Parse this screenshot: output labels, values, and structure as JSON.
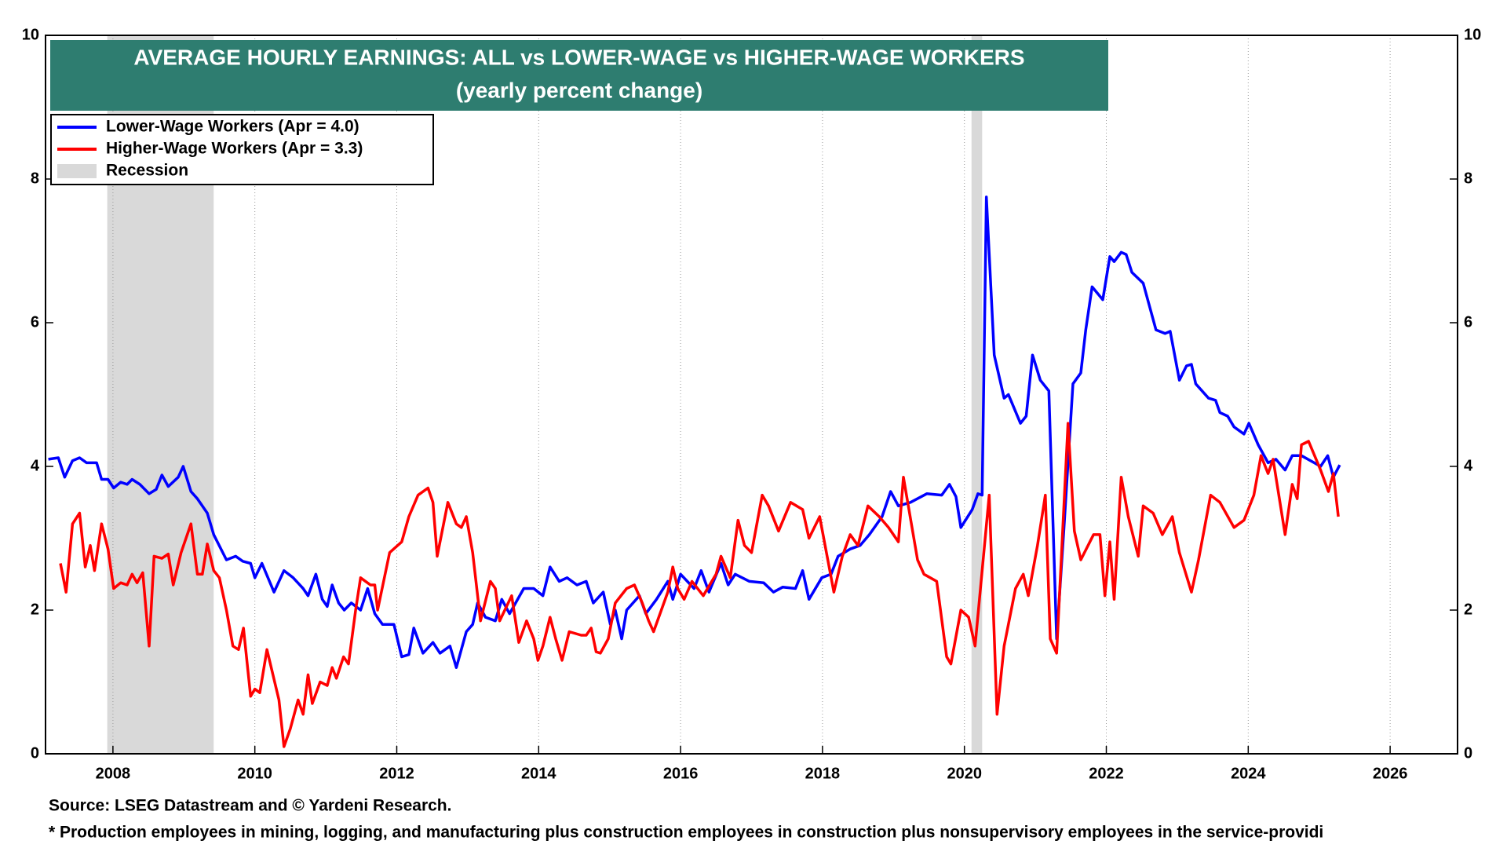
{
  "chart_data": {
    "type": "line",
    "title": "AVERAGE HOURLY EARNINGS: ALL vs LOWER-WAGE vs HIGHER-WAGE WORKERS",
    "subtitle": "(yearly percent change)",
    "source": "Source: LSEG Datastream and © Yardeni Research.",
    "footnote": "* Production employees in mining, logging, and manufacturing plus construction employees in construction plus nonsupervisory employees in the service-providi",
    "xlim": [
      2007.05,
      2026.95
    ],
    "xticks": [
      2008,
      2010,
      2012,
      2014,
      2016,
      2018,
      2020,
      2022,
      2024,
      2026
    ],
    "ylim": [
      0,
      10
    ],
    "yticks": [
      0,
      2,
      4,
      6,
      8,
      10
    ],
    "y2lim": [
      0,
      10
    ],
    "y2ticks": [
      0,
      2,
      4,
      6,
      8,
      10
    ],
    "grid": true,
    "legend": "top-left",
    "recession_label": "Recession",
    "recession_color": "#d9d9d9",
    "recessions": [
      [
        2007.92,
        2009.42
      ],
      [
        2020.1,
        2020.25
      ]
    ],
    "series": [
      {
        "name": "Lower-Wage Workers (Apr = 4.0)",
        "color": "#0000ff",
        "x": [
          2007.09,
          2007.23,
          2007.32,
          2007.43,
          2007.53,
          2007.63,
          2007.77,
          2007.84,
          2007.93,
          2008.01,
          2008.11,
          2008.2,
          2008.27,
          2008.38,
          2008.51,
          2008.61,
          2008.69,
          2008.78,
          2008.92,
          2008.99,
          2009.1,
          2009.19,
          2009.33,
          2009.42,
          2009.6,
          2009.73,
          2009.83,
          2009.94,
          2010.0,
          2010.1,
          2010.27,
          2010.41,
          2010.54,
          2010.68,
          2010.75,
          2010.86,
          2010.95,
          2011.02,
          2011.09,
          2011.18,
          2011.26,
          2011.36,
          2011.49,
          2011.59,
          2011.69,
          2011.8,
          2011.96,
          2012.07,
          2012.17,
          2012.24,
          2012.37,
          2012.51,
          2012.61,
          2012.75,
          2012.84,
          2012.98,
          2013.07,
          2013.14,
          2013.25,
          2013.39,
          2013.48,
          2013.59,
          2013.79,
          2013.93,
          2014.06,
          2014.16,
          2014.29,
          2014.4,
          2014.54,
          2014.67,
          2014.77,
          2014.91,
          2015.01,
          2015.08,
          2015.17,
          2015.24,
          2015.42,
          2015.51,
          2015.66,
          2015.82,
          2015.89,
          2016.0,
          2016.19,
          2016.29,
          2016.4,
          2016.57,
          2016.67,
          2016.77,
          2016.97,
          2017.17,
          2017.31,
          2017.44,
          2017.62,
          2017.72,
          2017.81,
          2017.99,
          2018.12,
          2018.22,
          2018.39,
          2018.53,
          2018.66,
          2018.84,
          2018.96,
          2019.07,
          2019.24,
          2019.47,
          2019.68,
          2019.79,
          2019.88,
          2019.95,
          2020.11,
          2020.19,
          2020.25,
          2020.31,
          2020.42,
          2020.56,
          2020.62,
          2020.79,
          2020.87,
          2020.96,
          2021.07,
          2021.19,
          2021.3,
          2021.4,
          2021.53,
          2021.64,
          2021.71,
          2021.8,
          2021.95,
          2022.05,
          2022.11,
          2022.21,
          2022.28,
          2022.36,
          2022.52,
          2022.7,
          2022.83,
          2022.9,
          2023.03,
          2023.13,
          2023.2,
          2023.26,
          2023.44,
          2023.54,
          2023.6,
          2023.71,
          2023.8,
          2023.94,
          2024.01,
          2024.14,
          2024.28,
          2024.39,
          2024.52,
          2024.62,
          2024.75,
          2024.93,
          2025.02,
          2025.12,
          2025.2,
          2025.29
        ],
        "values": [
          4.1,
          4.12,
          3.85,
          4.08,
          4.12,
          4.05,
          4.05,
          3.82,
          3.82,
          3.7,
          3.78,
          3.75,
          3.82,
          3.75,
          3.62,
          3.68,
          3.88,
          3.72,
          3.85,
          4.0,
          3.65,
          3.55,
          3.35,
          3.05,
          2.7,
          2.75,
          2.68,
          2.65,
          2.45,
          2.65,
          2.25,
          2.55,
          2.45,
          2.3,
          2.2,
          2.5,
          2.15,
          2.05,
          2.35,
          2.1,
          2.0,
          2.1,
          2.0,
          2.3,
          1.95,
          1.8,
          1.8,
          1.35,
          1.38,
          1.75,
          1.4,
          1.55,
          1.4,
          1.5,
          1.2,
          1.7,
          1.8,
          2.1,
          1.9,
          1.85,
          2.15,
          1.95,
          2.3,
          2.3,
          2.2,
          2.6,
          2.4,
          2.45,
          2.35,
          2.4,
          2.1,
          2.25,
          1.8,
          2.0,
          1.6,
          2.0,
          2.2,
          1.95,
          2.15,
          2.4,
          2.15,
          2.5,
          2.3,
          2.55,
          2.25,
          2.65,
          2.35,
          2.5,
          2.4,
          2.38,
          2.25,
          2.32,
          2.3,
          2.55,
          2.15,
          2.45,
          2.5,
          2.75,
          2.85,
          2.9,
          3.05,
          3.3,
          3.65,
          3.45,
          3.5,
          3.62,
          3.6,
          3.75,
          3.58,
          3.15,
          3.4,
          3.62,
          3.6,
          7.75,
          5.55,
          4.95,
          5.0,
          4.6,
          4.7,
          5.55,
          5.2,
          5.05,
          1.6,
          3.1,
          5.15,
          5.3,
          5.9,
          6.5,
          6.32,
          6.92,
          6.85,
          6.98,
          6.95,
          6.7,
          6.55,
          5.9,
          5.85,
          5.88,
          5.2,
          5.4,
          5.42,
          5.15,
          4.95,
          4.92,
          4.75,
          4.7,
          4.55,
          4.45,
          4.6,
          4.3,
          4.05,
          4.1,
          3.95,
          4.15,
          4.15,
          4.05,
          4.0,
          4.15,
          3.85,
          4.02
        ]
      },
      {
        "name": "Higher-Wage Workers (Apr = 3.3)",
        "color": "#ff0000",
        "x": [
          2007.26,
          2007.34,
          2007.43,
          2007.53,
          2007.61,
          2007.68,
          2007.74,
          2007.84,
          2007.93,
          2008.01,
          2008.11,
          2008.2,
          2008.27,
          2008.34,
          2008.42,
          2008.51,
          2008.58,
          2008.69,
          2008.78,
          2008.85,
          2008.96,
          2009.1,
          2009.19,
          2009.26,
          2009.33,
          2009.42,
          2009.5,
          2009.6,
          2009.69,
          2009.77,
          2009.84,
          2009.94,
          2010.0,
          2010.07,
          2010.17,
          2010.34,
          2010.41,
          2010.5,
          2010.61,
          2010.68,
          2010.75,
          2010.81,
          2010.92,
          2011.02,
          2011.09,
          2011.15,
          2011.25,
          2011.32,
          2011.42,
          2011.49,
          2011.63,
          2011.69,
          2011.73,
          2011.9,
          2012.07,
          2012.17,
          2012.3,
          2012.44,
          2012.51,
          2012.57,
          2012.72,
          2012.84,
          2012.91,
          2012.98,
          2013.07,
          2013.18,
          2013.32,
          2013.39,
          2013.45,
          2013.62,
          2013.72,
          2013.83,
          2013.93,
          2013.99,
          2014.06,
          2014.16,
          2014.24,
          2014.33,
          2014.43,
          2014.6,
          2014.67,
          2014.74,
          2014.81,
          2014.87,
          2014.98,
          2015.08,
          2015.24,
          2015.35,
          2015.46,
          2015.55,
          2015.62,
          2015.82,
          2015.89,
          2015.96,
          2016.05,
          2016.16,
          2016.32,
          2016.5,
          2016.57,
          2016.7,
          2016.81,
          2016.9,
          2017.0,
          2017.15,
          2017.24,
          2017.38,
          2017.55,
          2017.72,
          2017.81,
          2017.96,
          2018.16,
          2018.28,
          2018.39,
          2018.5,
          2018.64,
          2018.8,
          2018.93,
          2019.07,
          2019.14,
          2019.34,
          2019.43,
          2019.61,
          2019.75,
          2019.81,
          2019.95,
          2020.06,
          2020.15,
          2020.35,
          2020.46,
          2020.56,
          2020.72,
          2020.83,
          2020.9,
          2021.03,
          2021.14,
          2021.21,
          2021.3,
          2021.46,
          2021.55,
          2021.64,
          2021.82,
          2021.91,
          2021.98,
          2022.05,
          2022.11,
          2022.21,
          2022.31,
          2022.45,
          2022.52,
          2022.66,
          2022.79,
          2022.93,
          2023.03,
          2023.2,
          2023.3,
          2023.47,
          2023.6,
          2023.8,
          2023.94,
          2024.08,
          2024.18,
          2024.28,
          2024.35,
          2024.52,
          2024.62,
          2024.69,
          2024.75,
          2024.85,
          2025.02,
          2025.13,
          2025.2,
          2025.27
        ],
        "values": [
          2.65,
          2.25,
          3.2,
          3.35,
          2.6,
          2.9,
          2.55,
          3.2,
          2.85,
          2.3,
          2.38,
          2.35,
          2.5,
          2.38,
          2.52,
          1.5,
          2.75,
          2.72,
          2.78,
          2.35,
          2.8,
          3.2,
          2.5,
          2.5,
          2.92,
          2.55,
          2.45,
          2.0,
          1.5,
          1.45,
          1.75,
          0.8,
          0.9,
          0.85,
          1.45,
          0.75,
          0.1,
          0.35,
          0.75,
          0.55,
          1.1,
          0.7,
          1.0,
          0.95,
          1.2,
          1.05,
          1.35,
          1.25,
          2.0,
          2.45,
          2.35,
          2.35,
          2.0,
          2.8,
          2.95,
          3.3,
          3.6,
          3.7,
          3.5,
          2.75,
          3.5,
          3.2,
          3.15,
          3.3,
          2.8,
          1.85,
          2.4,
          2.3,
          1.85,
          2.2,
          1.55,
          1.85,
          1.6,
          1.3,
          1.5,
          1.9,
          1.6,
          1.3,
          1.7,
          1.65,
          1.65,
          1.75,
          1.42,
          1.4,
          1.6,
          2.1,
          2.3,
          2.35,
          2.1,
          1.85,
          1.7,
          2.25,
          2.6,
          2.3,
          2.15,
          2.4,
          2.2,
          2.5,
          2.75,
          2.45,
          3.25,
          2.9,
          2.8,
          3.6,
          3.45,
          3.1,
          3.5,
          3.4,
          3.0,
          3.3,
          2.25,
          2.75,
          3.05,
          2.9,
          3.45,
          3.3,
          3.15,
          2.95,
          3.85,
          2.7,
          2.5,
          2.4,
          1.35,
          1.25,
          2.0,
          1.9,
          1.5,
          3.6,
          0.55,
          1.5,
          2.3,
          2.5,
          2.2,
          2.9,
          3.6,
          1.6,
          1.4,
          4.6,
          3.1,
          2.7,
          3.05,
          3.05,
          2.2,
          2.95,
          2.15,
          3.85,
          3.3,
          2.75,
          3.45,
          3.35,
          3.05,
          3.3,
          2.8,
          2.25,
          2.7,
          3.6,
          3.5,
          3.15,
          3.25,
          3.6,
          4.15,
          3.9,
          4.1,
          3.05,
          3.75,
          3.55,
          4.3,
          4.35,
          3.95,
          3.65,
          3.9,
          3.3
        ]
      }
    ]
  }
}
